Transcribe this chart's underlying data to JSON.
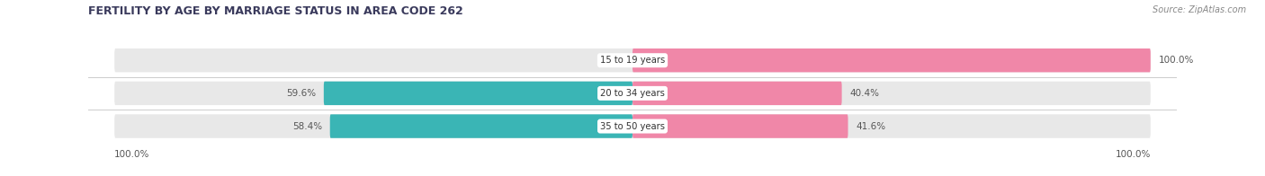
{
  "title": "FERTILITY BY AGE BY MARRIAGE STATUS IN AREA CODE 262",
  "source": "Source: ZipAtlas.com",
  "categories": [
    "15 to 19 years",
    "20 to 34 years",
    "35 to 50 years"
  ],
  "married_pct": [
    0.0,
    59.6,
    58.4
  ],
  "unmarried_pct": [
    100.0,
    40.4,
    41.6
  ],
  "married_color": "#3ab5b5",
  "unmarried_color": "#f087a8",
  "bar_bg_color": "#e8e8e8",
  "bottom_left_label": "100.0%",
  "bottom_right_label": "100.0%",
  "figsize": [
    14.06,
    1.96
  ],
  "dpi": 100,
  "title_color": "#3a3a5c",
  "label_color": "#555555",
  "source_color": "#888888",
  "sep_color": "#cccccc"
}
